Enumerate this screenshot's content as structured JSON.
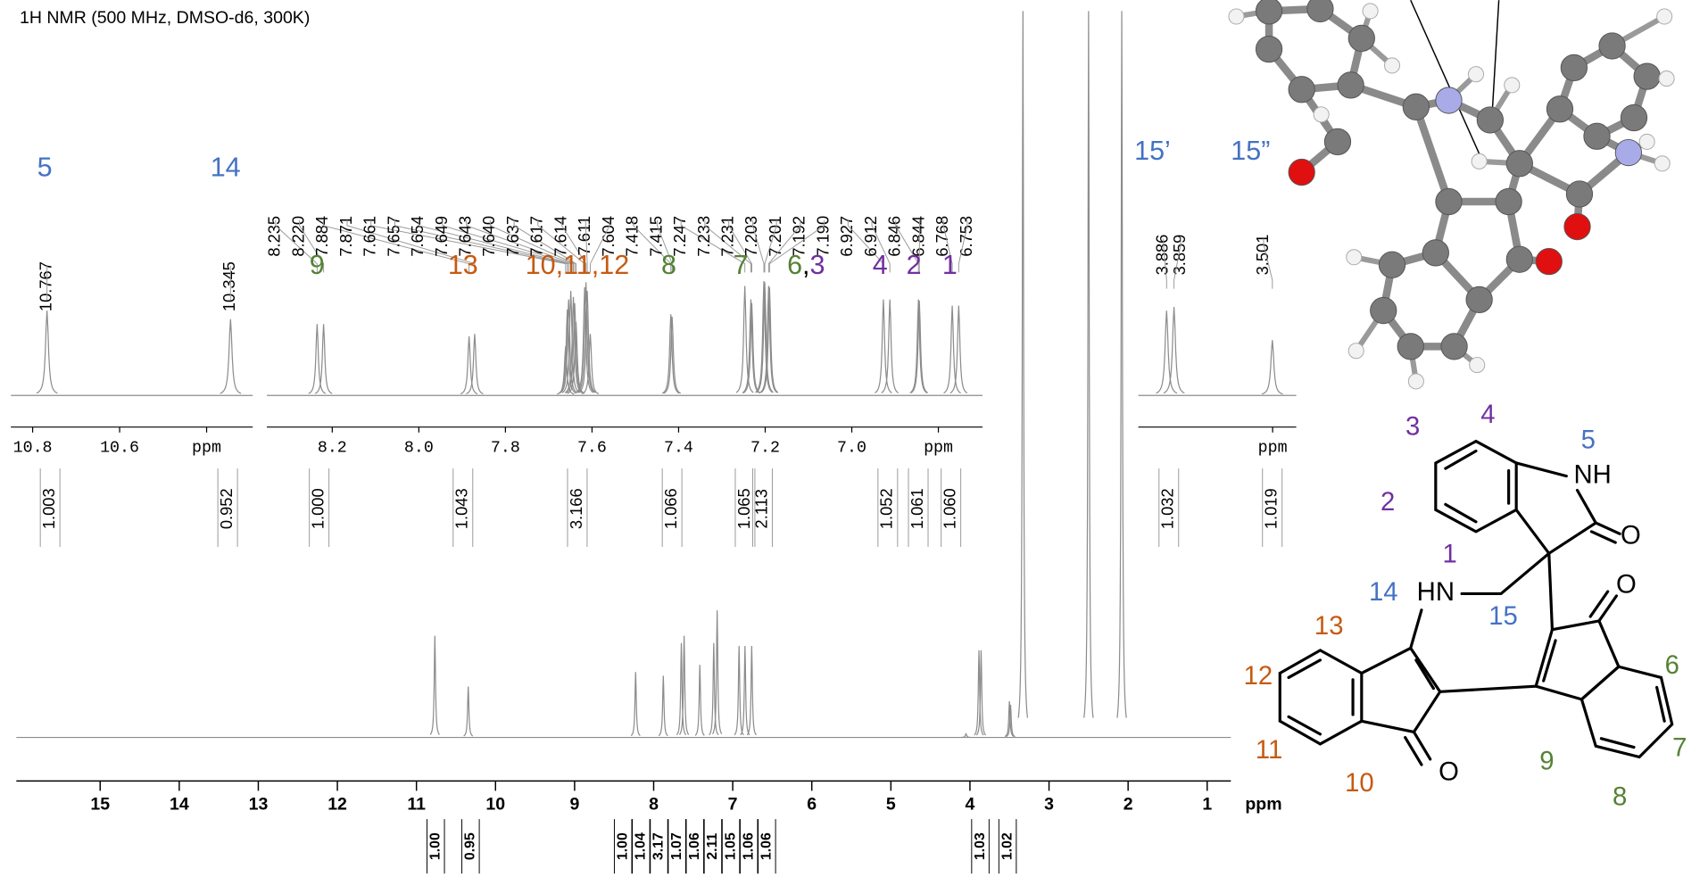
{
  "title": "1H NMR (500 MHz, DMSO-d6, 300K)",
  "chart_data": [
    {
      "type": "spectrum",
      "color": "#8c8c8c",
      "x": [
        10.767,
        10.345,
        8.228,
        7.878,
        7.65,
        7.615,
        7.416,
        7.24,
        7.197,
        6.92,
        6.845,
        6.76,
        4.05,
        3.886,
        3.859,
        3.501,
        3.486,
        3.33,
        2.5,
        2.08
      ],
      "values": [
        14,
        7,
        9,
        8.5,
        13,
        14,
        10,
        13,
        17.5,
        12.6,
        12.6,
        12.6,
        0.5,
        12,
        12,
        5,
        4.5,
        100,
        100,
        100
      ],
      "xlim": [
        16.06,
        0.7
      ],
      "ylim": [
        0,
        100
      ],
      "xticks": [
        15,
        14,
        13,
        12,
        11,
        10,
        9,
        8,
        7,
        6,
        5,
        4,
        3,
        2,
        1
      ],
      "xlabel": "ppm",
      "integrals": [
        1.0,
        0.95,
        1.0,
        1.04,
        3.17,
        1.07,
        1.06,
        2.11,
        1.05,
        1.06,
        1.06,
        1.03,
        1.02
      ],
      "integral_labels": [
        "1.00",
        "0.95",
        "1.00",
        "1.04",
        "3.17",
        "1.07",
        "1.06",
        "2.11",
        "1.05",
        "1.06",
        "1.06",
        "1.03",
        "1.02"
      ]
    },
    {
      "type": "spectrum",
      "color": "#8c8c8c",
      "x": [
        10.767,
        10.345
      ],
      "values": [
        69,
        62
      ],
      "xlim": [
        10.85,
        10.294
      ],
      "ylim": [
        0,
        100
      ],
      "xticks": [
        10.8,
        10.6,
        {
          "value": 10.4,
          "label": "ppm"
        }
      ],
      "integrals": [
        1.003,
        0.952
      ],
      "integral_labels": [
        "1.003",
        "0.952"
      ],
      "assignments": [
        [
          {
            "text": "5",
            "color": "#4472c4"
          }
        ],
        [
          {
            "text": "14",
            "color": "#4472c4"
          }
        ]
      ]
    },
    {
      "type": "spectrum",
      "color": "#8c8c8c",
      "x": [
        8.235,
        8.22,
        7.884,
        7.871,
        7.661,
        7.657,
        7.654,
        7.649,
        7.643,
        7.64,
        7.637,
        7.617,
        7.614,
        7.611,
        7.604,
        7.418,
        7.415,
        7.247,
        7.233,
        7.231,
        7.203,
        7.201,
        7.192,
        7.19,
        6.927,
        6.912,
        6.846,
        6.844,
        6.768,
        6.753
      ],
      "x_labels": [
        "8.235",
        "8.220",
        "7.884",
        "7.871",
        "7.661",
        "7.657",
        "7.654",
        "7.649",
        "7.643",
        "7.640",
        "7.637",
        "7.617",
        "7.614",
        "7.611",
        "7.604",
        "7.418",
        "7.415",
        "7.247",
        "7.233",
        "7.231",
        "7.203",
        "7.201",
        "7.192",
        "7.190",
        "6.927",
        "6.912",
        "6.846",
        "6.844",
        "6.768",
        "6.753"
      ],
      "values": [
        58,
        58,
        48,
        50,
        40,
        70,
        78,
        85,
        80,
        75,
        60,
        88,
        92,
        85,
        50,
        66,
        64,
        89,
        78,
        75,
        93,
        92,
        89,
        88,
        78,
        78,
        78,
        77,
        73,
        73
      ],
      "xlim": [
        8.351,
        6.698
      ],
      "ylim": [
        0,
        100
      ],
      "xticks": [
        8.2,
        {
          "value": 8,
          "label": "8.0"
        },
        7.8,
        7.6,
        7.4,
        7.2,
        {
          "value": 7,
          "label": "7.0"
        },
        {
          "value": 6.8,
          "label": "ppm"
        }
      ],
      "integrals": [
        1.0,
        1.043,
        3.166,
        1.066,
        1.065,
        2.113,
        1.052,
        1.061,
        1.06
      ],
      "integral_labels": [
        "1.000",
        "1.043",
        "3.166",
        "1.066",
        "1.065",
        "2.113",
        "1.052",
        "1.061",
        "1.060"
      ],
      "assignments": [
        [
          {
            "text": "9",
            "color": "#548235"
          }
        ],
        [
          {
            "text": "13",
            "color": "#c55a11"
          }
        ],
        [
          {
            "text": "10,11,12",
            "color": "#c55a11"
          }
        ],
        [
          {
            "text": "8",
            "color": "#548235"
          }
        ],
        [
          {
            "text": "7",
            "color": "#548235"
          }
        ],
        [
          {
            "text": "6",
            "color": "#548235"
          },
          {
            "text": ",",
            "color": "#000000"
          },
          {
            "text": "3",
            "color": "#7030a0"
          }
        ],
        [
          {
            "text": "4",
            "color": "#7030a0"
          }
        ],
        [
          {
            "text": "2",
            "color": "#7030a0"
          }
        ],
        [
          {
            "text": "1",
            "color": "#7030a0"
          }
        ]
      ]
    },
    {
      "type": "spectrum",
      "color": "#8c8c8c",
      "x": [
        3.886,
        3.859,
        3.501
      ],
      "values": [
        69,
        72,
        45
      ],
      "xlim": [
        3.989,
        3.414
      ],
      "ylim": [
        0,
        100
      ],
      "xticks": [
        {
          "value": 3.5,
          "label": "ppm"
        }
      ],
      "integrals": [
        1.032,
        1.019
      ],
      "integral_labels": [
        "1.032",
        "1.019"
      ],
      "assignments": [
        [
          {
            "text": "15’",
            "color": "#4472c4"
          }
        ],
        [
          {
            "text": "15”",
            "color": "#4472c4"
          }
        ]
      ]
    }
  ],
  "structure_labels": [
    {
      "text": "3",
      "color": "#7030a0"
    },
    {
      "text": "4",
      "color": "#7030a0"
    },
    {
      "text": "5",
      "color": "#4472c4"
    },
    {
      "text": "NH",
      "color": "#000000"
    },
    {
      "text": "2",
      "color": "#7030a0"
    },
    {
      "text": "O",
      "color": "#000000"
    },
    {
      "text": "1",
      "color": "#7030a0"
    },
    {
      "text": "O",
      "color": "#000000"
    },
    {
      "text": "14",
      "color": "#4472c4"
    },
    {
      "text": "HN",
      "color": "#000000"
    },
    {
      "text": "15",
      "color": "#4472c4"
    },
    {
      "text": "13",
      "color": "#c55a11"
    },
    {
      "text": "12",
      "color": "#c55a11"
    },
    {
      "text": "6",
      "color": "#548235"
    },
    {
      "text": "11",
      "color": "#c55a11"
    },
    {
      "text": "7",
      "color": "#548235"
    },
    {
      "text": "O",
      "color": "#000000"
    },
    {
      "text": "9",
      "color": "#548235"
    },
    {
      "text": "10",
      "color": "#c55a11"
    },
    {
      "text": "8",
      "color": "#548235"
    }
  ]
}
